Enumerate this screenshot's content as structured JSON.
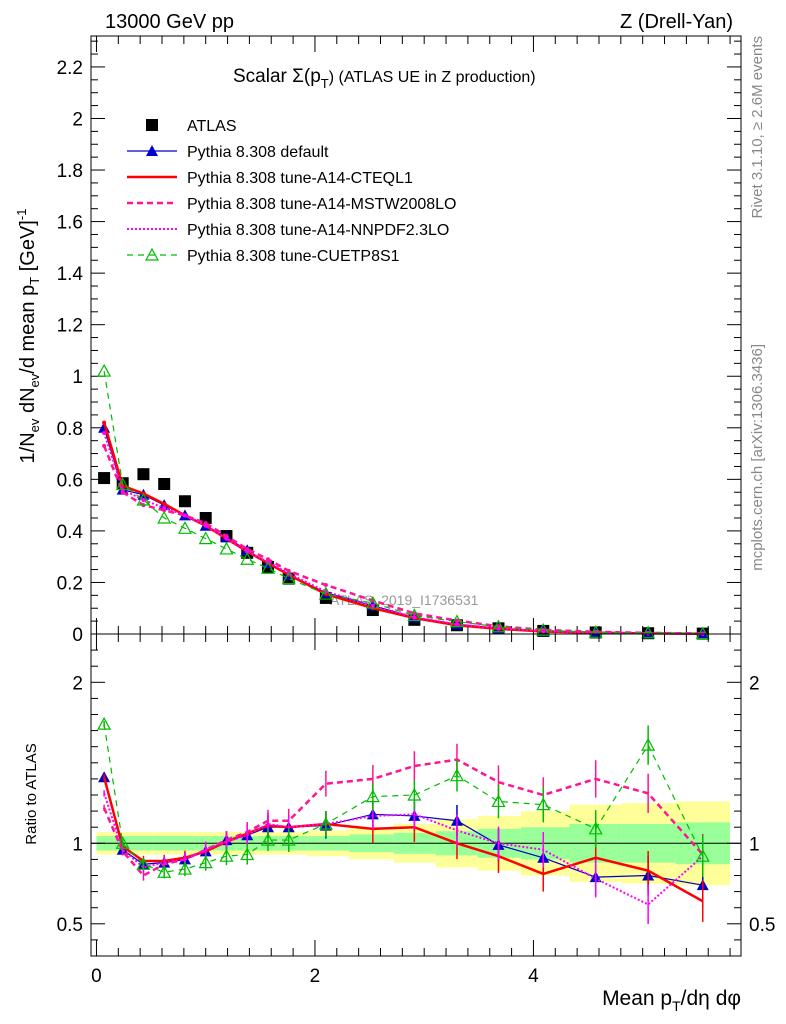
{
  "header": {
    "left": "13000 GeV pp",
    "right": "Z (Drell-Yan)"
  },
  "side": {
    "rivet": "Rivet 3.1.10, ≥ 2.6M events",
    "mcplots": "mcplots.cern.ch [arXiv:1306.3436]"
  },
  "watermark": "ATLAS_2019_I1736531",
  "chart_data": [
    {
      "type": "line",
      "title": "Scalar Σ(p_T) (ATLAS UE in Z production)",
      "title_main": "Scalar Σ(p",
      "title_sub": "T",
      "title_tail": ") (ATLAS UE in Z production)",
      "ylabel": "1/N_ev dN_ev/d mean p_T [GeV]^-1",
      "ylabel_parts": {
        "a": "1/N",
        "b": "ev",
        "c": " dN",
        "d": "ev",
        "e": "/d mean p",
        "f": "T",
        "g": " [GeV]",
        "h": "-1"
      },
      "xlim": [
        -0.05,
        5.9
      ],
      "ylim": [
        0,
        2.32
      ],
      "yticks": [
        "0",
        "0.2",
        "0.4",
        "0.6",
        "0.8",
        "1",
        "1.2",
        "1.4",
        "1.6",
        "1.8",
        "2",
        "2.2"
      ],
      "legend_position": "top-left",
      "x": [
        0.07,
        0.24,
        0.43,
        0.62,
        0.81,
        1.0,
        1.19,
        1.38,
        1.57,
        1.76,
        2.1,
        2.53,
        2.91,
        3.3,
        3.68,
        4.09,
        4.57,
        5.05,
        5.55
      ],
      "series": [
        {
          "name": "ATLAS",
          "color": "#000000",
          "values": [
            0.605,
            0.585,
            0.62,
            0.582,
            0.515,
            0.45,
            0.38,
            0.315,
            0.26,
            0.215,
            0.14,
            0.093,
            0.055,
            0.034,
            0.022,
            0.012,
            0.006,
            0.003,
            0.0015
          ]
        },
        {
          "name": "Pythia 8.308 default",
          "color": "#0000cc",
          "values": [
            0.8,
            0.56,
            0.54,
            0.5,
            0.46,
            0.42,
            0.375,
            0.325,
            0.275,
            0.23,
            0.16,
            0.11,
            0.064,
            0.038,
            0.022,
            0.011,
            0.005,
            0.0024,
            0.0011
          ]
        },
        {
          "name": "Pythia 8.308 tune-A14-CTEQL1",
          "color": "#ff0000",
          "values": [
            0.82,
            0.575,
            0.545,
            0.505,
            0.46,
            0.42,
            0.37,
            0.32,
            0.275,
            0.23,
            0.155,
            0.1,
            0.062,
            0.034,
            0.02,
            0.0095,
            0.0053,
            0.0024,
            0.001
          ]
        },
        {
          "name": "Pythia 8.308 tune-A14-MSTW2008LO",
          "color": "#ff1493",
          "values": [
            0.73,
            0.55,
            0.5,
            0.48,
            0.46,
            0.43,
            0.38,
            0.33,
            0.29,
            0.245,
            0.19,
            0.13,
            0.08,
            0.052,
            0.03,
            0.016,
            0.0085,
            0.0042,
            0.002
          ]
        },
        {
          "name": "Pythia 8.308 tune-A14-NNPDF2.3LO",
          "color": "#ff00ff",
          "values": [
            0.78,
            0.56,
            0.52,
            0.49,
            0.46,
            0.42,
            0.37,
            0.32,
            0.28,
            0.235,
            0.165,
            0.11,
            0.065,
            0.038,
            0.022,
            0.0115,
            0.005,
            0.0019,
            0.0013
          ]
        },
        {
          "name": "Pythia 8.308 tune-CUETP8S1",
          "color": "#00bb00",
          "values": [
            1.02,
            0.58,
            0.52,
            0.45,
            0.41,
            0.37,
            0.33,
            0.29,
            0.255,
            0.215,
            0.155,
            0.12,
            0.072,
            0.048,
            0.028,
            0.015,
            0.0065,
            0.0048,
            0.0014
          ]
        }
      ]
    },
    {
      "type": "line",
      "title": "",
      "ylabel": "Ratio to ATLAS",
      "xlabel": "Mean p_T/dη dφ",
      "xlabel_parts": {
        "a": "Mean p",
        "b": "T",
        "c": "/dη dφ"
      },
      "xlim": [
        -0.05,
        5.9
      ],
      "ylim": [
        0.3,
        2.3
      ],
      "yticks": [
        "0.5",
        "1",
        "2"
      ],
      "xticks": [
        "0",
        "2",
        "4"
      ],
      "x": [
        0.07,
        0.24,
        0.43,
        0.62,
        0.81,
        1.0,
        1.19,
        1.38,
        1.57,
        1.76,
        2.1,
        2.53,
        2.91,
        3.3,
        3.68,
        4.09,
        4.57,
        5.05,
        5.55
      ],
      "series": [
        {
          "name": "Pythia 8.308 default",
          "color": "#0000cc",
          "values": [
            1.41,
            0.96,
            0.87,
            0.88,
            0.9,
            0.95,
            1.02,
            1.05,
            1.1,
            1.1,
            1.11,
            1.18,
            1.17,
            1.14,
            0.99,
            0.91,
            0.79,
            0.8,
            0.74
          ]
        },
        {
          "name": "Pythia 8.308 tune-A14-CTEQL1",
          "color": "#ff0000",
          "values": [
            1.41,
            0.98,
            0.89,
            0.89,
            0.91,
            0.95,
            1.01,
            1.06,
            1.11,
            1.1,
            1.12,
            1.09,
            1.1,
            1.0,
            0.92,
            0.81,
            0.91,
            0.83,
            0.64
          ]
        },
        {
          "name": "Pythia 8.308 tune-A14-MSTW2008LO",
          "color": "#ff1493",
          "values": [
            1.22,
            0.95,
            0.8,
            0.87,
            0.9,
            0.96,
            1.02,
            1.07,
            1.14,
            1.14,
            1.37,
            1.4,
            1.48,
            1.52,
            1.38,
            1.3,
            1.4,
            1.31,
            0.93
          ]
        },
        {
          "name": "Pythia 8.308 tune-A14-NNPDF2.3LO",
          "color": "#ff00ff",
          "values": [
            1.31,
            0.96,
            0.85,
            0.88,
            0.9,
            0.96,
            1.01,
            1.05,
            1.12,
            1.1,
            1.12,
            1.17,
            1.18,
            1.08,
            1.0,
            0.96,
            0.78,
            0.62,
            0.92
          ]
        },
        {
          "name": "Pythia 8.308 tune-CUETP8S1",
          "color": "#00bb00",
          "values": [
            1.74,
            1.0,
            0.87,
            0.82,
            0.84,
            0.88,
            0.92,
            0.93,
            1.02,
            1.02,
            1.12,
            1.29,
            1.3,
            1.42,
            1.26,
            1.24,
            1.09,
            1.61,
            0.92
          ]
        }
      ],
      "band_green": [
        0.045,
        0.045,
        0.045,
        0.045,
        0.045,
        0.045,
        0.045,
        0.045,
        0.045,
        0.045,
        0.045,
        0.055,
        0.065,
        0.075,
        0.09,
        0.1,
        0.12,
        0.12,
        0.13
      ],
      "band_yellow": [
        0.07,
        0.07,
        0.07,
        0.07,
        0.07,
        0.07,
        0.07,
        0.07,
        0.07,
        0.07,
        0.08,
        0.1,
        0.12,
        0.15,
        0.17,
        0.2,
        0.24,
        0.25,
        0.26
      ]
    }
  ]
}
